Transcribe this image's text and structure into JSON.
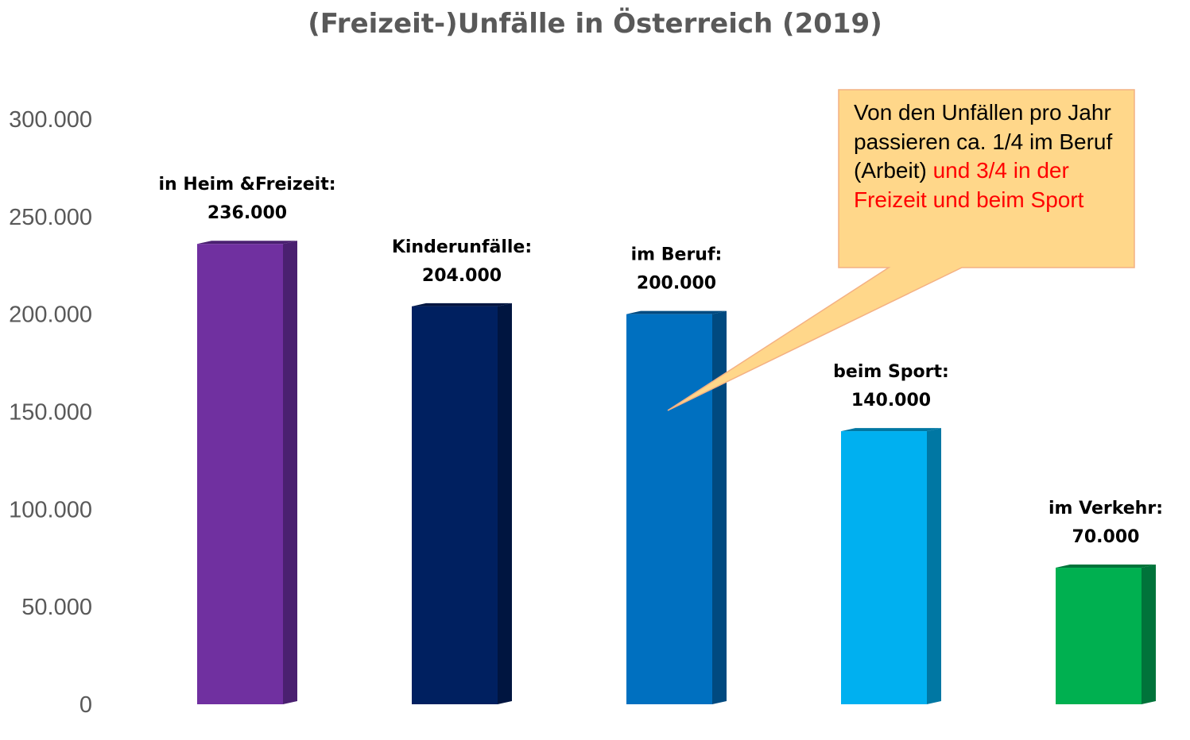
{
  "chart_data": {
    "type": "bar",
    "title": "(Freizeit-)Unfälle in Österreich (2019)",
    "xlabel": "",
    "ylabel": "",
    "ylim": [
      0,
      300000
    ],
    "yticks": [
      "0",
      "50.000",
      "100.000",
      "150.000",
      "200.000",
      "250.000",
      "300.000"
    ],
    "grid": false,
    "legend": "none",
    "categories": [
      "in Heim &Freizeit:",
      "Kinderunfälle:",
      "im Beruf:",
      "beim Sport:",
      "im Verkehr:"
    ],
    "values": [
      236000,
      204000,
      200000,
      140000,
      70000
    ],
    "value_labels": [
      "236.000",
      "204.000",
      "200.000",
      "140.000",
      "70.000"
    ],
    "colors": [
      "#7030a0",
      "#002060",
      "#0070c0",
      "#00b0f0",
      "#00b050"
    ],
    "side_colors": [
      "#4a2070",
      "#001540",
      "#004a80",
      "#0077a3",
      "#00733a"
    ],
    "annotation": {
      "text_black": "Von den Unfällen pro Jahr passieren ca. 1/4 im Beruf (Arbeit)",
      "text_red": "und 3/4 in der Freizeit und beim Sport",
      "fill": "#ffd78a",
      "border": "#f4b183",
      "accent_color": "#ff0000"
    }
  }
}
